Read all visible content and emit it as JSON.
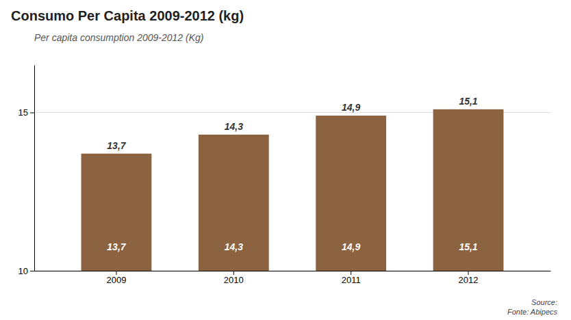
{
  "chart_data": {
    "type": "bar",
    "title": "Consumo Per Capita 2009-2012 (kg)",
    "subtitle": "Per capita consumption 2009-2012 (Kg)",
    "annotations": [
      "Source:",
      "Fonte: Abipecs"
    ],
    "categories": [
      "2009",
      "2010",
      "2011",
      "2012"
    ],
    "values": [
      13.7,
      14.3,
      14.9,
      15.1
    ],
    "value_labels": [
      "13,7",
      "14,3",
      "14,9",
      "15,1"
    ],
    "data_labels": true,
    "color": "#8B6340",
    "ylim": [
      10,
      16.5
    ],
    "yticks": [
      10,
      15
    ],
    "grid": true
  }
}
